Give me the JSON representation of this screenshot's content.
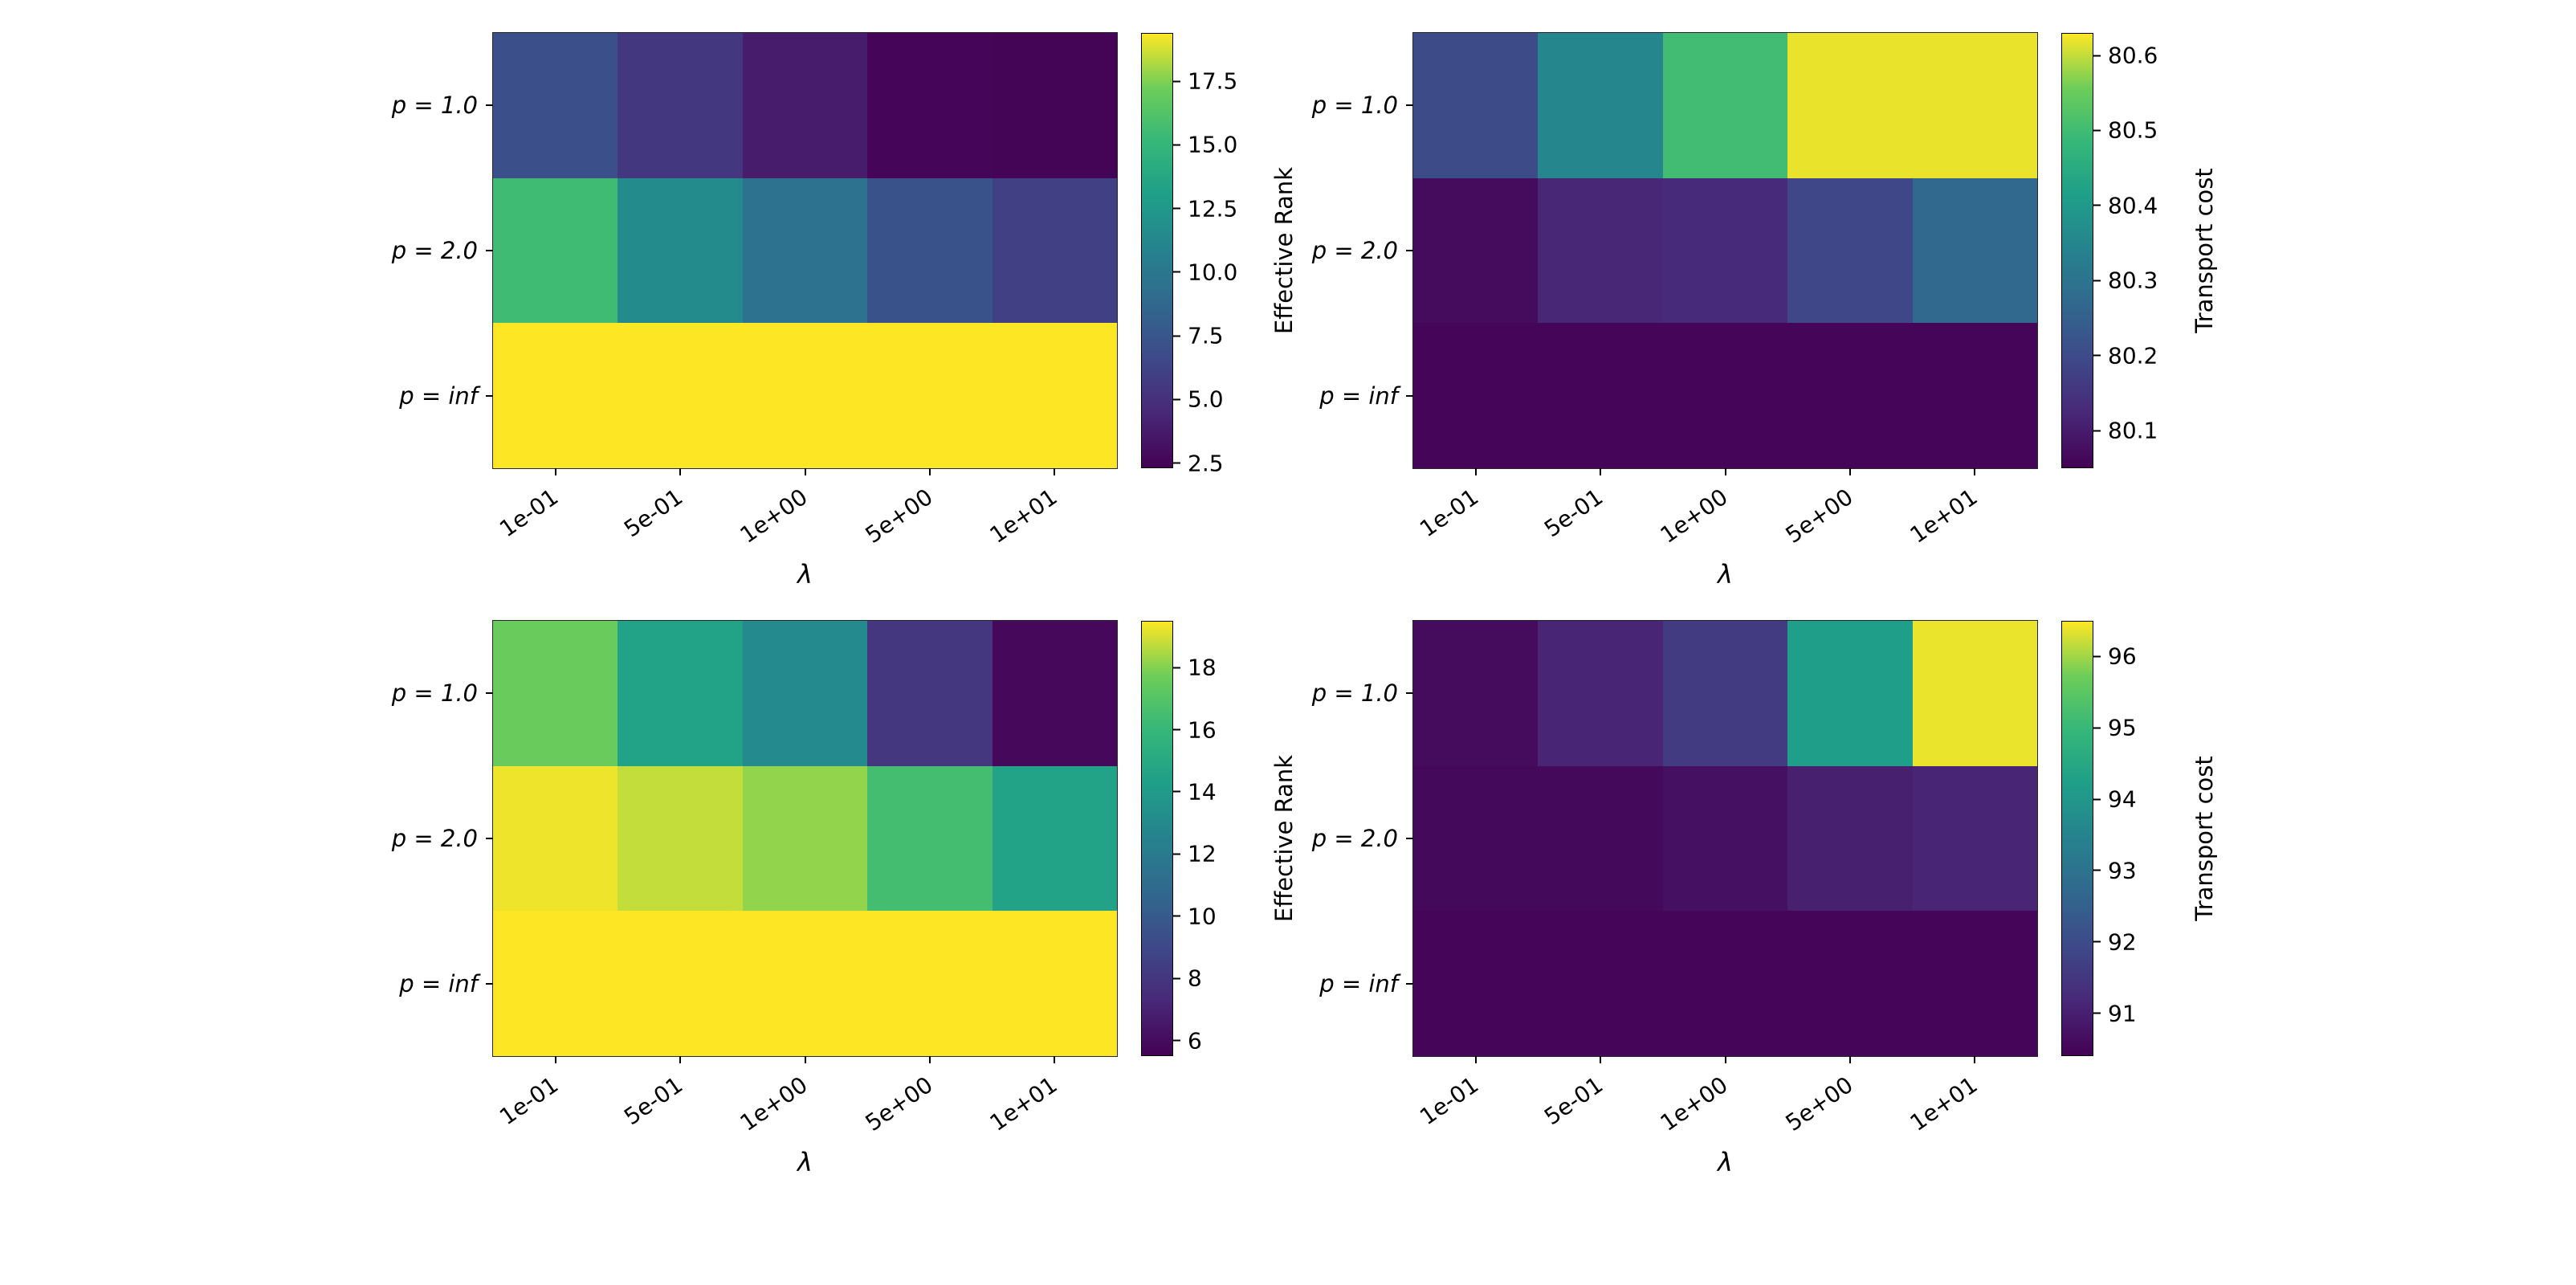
{
  "figure": {
    "background": "#ffffff",
    "colormap_name": "viridis",
    "colormap_colors": [
      "#440154",
      "#482878",
      "#3e4989",
      "#31688e",
      "#26828e",
      "#1f9e89",
      "#35b779",
      "#6dcd59",
      "#fde725"
    ]
  },
  "chart_data": [
    {
      "type": "heatmap",
      "position": "top-left",
      "xlabel": "λ",
      "colorbar_label": "Effective Rank",
      "x_ticklabels": [
        "1e-01",
        "5e-01",
        "1e+00",
        "5e+00",
        "1e+01"
      ],
      "y_ticklabels": [
        "p = 1.0",
        "p = 2.0",
        "p = inf"
      ],
      "vmin": 2.3,
      "vmax": 19.4,
      "colorbar_ticks": [
        2.5,
        5.0,
        7.5,
        10.0,
        12.5,
        15.0,
        17.5
      ],
      "colorbar_tick_labels": [
        "2.5",
        "5.0",
        "7.5",
        "10.0",
        "12.5",
        "15.0",
        "17.5"
      ],
      "values": [
        [
          7.0,
          5.4,
          3.8,
          2.6,
          2.5
        ],
        [
          15.5,
          11.5,
          9.5,
          7.2,
          6.0
        ],
        [
          19.4,
          19.4,
          19.4,
          19.4,
          19.4
        ]
      ]
    },
    {
      "type": "heatmap",
      "position": "top-right",
      "xlabel": "λ",
      "colorbar_label": "Transport cost",
      "x_ticklabels": [
        "1e-01",
        "5e-01",
        "1e+00",
        "5e+00",
        "1e+01"
      ],
      "y_ticklabels": [
        "p = 1.0",
        "p = 2.0",
        "p = inf"
      ],
      "vmin": 80.05,
      "vmax": 80.63,
      "colorbar_ticks": [
        80.1,
        80.2,
        80.3,
        80.4,
        80.5,
        80.6
      ],
      "colorbar_tick_labels": [
        "80.1",
        "80.2",
        "80.3",
        "80.4",
        "80.5",
        "80.6"
      ],
      "values": [
        [
          80.2,
          80.35,
          80.5,
          80.62,
          80.62
        ],
        [
          80.07,
          80.12,
          80.13,
          80.19,
          80.27
        ],
        [
          80.06,
          80.06,
          80.06,
          80.06,
          80.06
        ]
      ]
    },
    {
      "type": "heatmap",
      "position": "bottom-left",
      "xlabel": "λ",
      "colorbar_label": "Effective Rank",
      "x_ticklabels": [
        "1e-01",
        "5e-01",
        "1e+00",
        "5e+00",
        "1e+01"
      ],
      "y_ticklabels": [
        "p = 1.0",
        "p = 2.0",
        "p = inf"
      ],
      "vmin": 5.5,
      "vmax": 19.5,
      "colorbar_ticks": [
        6,
        8,
        10,
        12,
        14,
        16,
        18
      ],
      "colorbar_tick_labels": [
        "6",
        "8",
        "10",
        "12",
        "14",
        "16",
        "18"
      ],
      "values": [
        [
          17.6,
          14.5,
          13.0,
          8.0,
          5.8
        ],
        [
          19.3,
          18.8,
          18.2,
          16.5,
          14.5
        ],
        [
          19.5,
          19.5,
          19.5,
          19.5,
          19.5
        ]
      ]
    },
    {
      "type": "heatmap",
      "position": "bottom-right",
      "xlabel": "λ",
      "colorbar_label": "Transport cost",
      "x_ticklabels": [
        "1e-01",
        "5e-01",
        "1e+00",
        "5e+00",
        "1e+01"
      ],
      "y_ticklabels": [
        "p = 1.0",
        "p = 2.0",
        "p = inf"
      ],
      "vmin": 90.4,
      "vmax": 96.5,
      "colorbar_ticks": [
        91,
        92,
        93,
        94,
        95,
        96
      ],
      "colorbar_tick_labels": [
        "91",
        "92",
        "93",
        "94",
        "95",
        "96"
      ],
      "values": [
        [
          90.6,
          91.1,
          91.6,
          94.2,
          96.4
        ],
        [
          90.55,
          90.55,
          90.7,
          91.0,
          91.1
        ],
        [
          90.5,
          90.5,
          90.5,
          90.5,
          90.5
        ]
      ]
    }
  ]
}
